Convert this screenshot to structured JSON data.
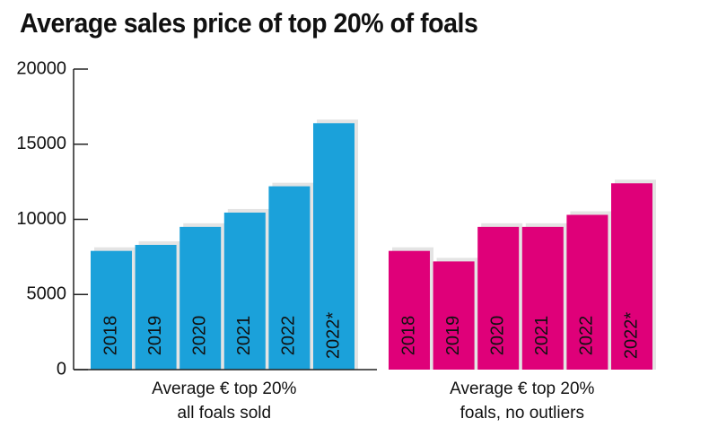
{
  "chart_data": {
    "type": "bar",
    "title": "Average sales price of top 20% of foals",
    "categories": [
      "2018",
      "2019",
      "2020",
      "2021",
      "2022",
      "2022*"
    ],
    "series": [
      {
        "name": "Average € top 20%\nall foals sold",
        "color": "#1ba1da",
        "values": [
          7900,
          8300,
          9500,
          10450,
          12200,
          16400
        ]
      },
      {
        "name": "Average € top 20%\nfoals, no outliers",
        "color": "#df0079",
        "values": [
          7900,
          7200,
          9500,
          9500,
          10300,
          12400
        ]
      }
    ],
    "ylim": [
      0,
      20000
    ],
    "yticks": [
      0,
      5000,
      10000,
      15000,
      20000
    ]
  }
}
